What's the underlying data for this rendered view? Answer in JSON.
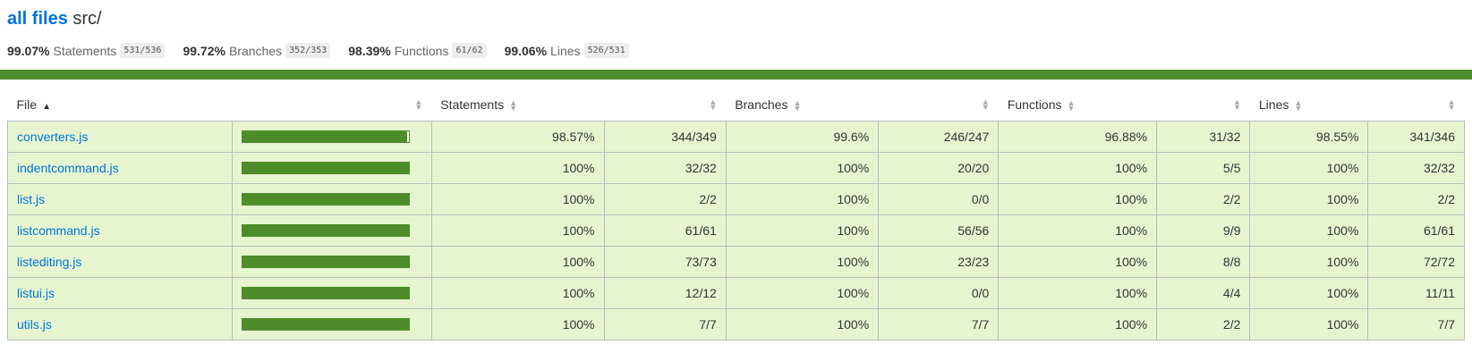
{
  "title": {
    "root_link": "all files",
    "path": "src/"
  },
  "summary": [
    {
      "pct": "99.07%",
      "label": "Statements",
      "frac": "531/536"
    },
    {
      "pct": "99.72%",
      "label": "Branches",
      "frac": "352/353"
    },
    {
      "pct": "98.39%",
      "label": "Functions",
      "frac": "61/62"
    },
    {
      "pct": "99.06%",
      "label": "Lines",
      "frac": "526/531"
    }
  ],
  "table": {
    "headers": {
      "file": "File",
      "statements": "Statements",
      "branches": "Branches",
      "functions": "Functions",
      "lines": "Lines"
    },
    "rows": [
      {
        "file": "converters.js",
        "coverage_fraction": 0.9857,
        "stmt_pct": "98.57%",
        "stmt_frac": "344/349",
        "br_pct": "99.6%",
        "br_frac": "246/247",
        "fn_pct": "96.88%",
        "fn_frac": "31/32",
        "ln_pct": "98.55%",
        "ln_frac": "341/346"
      },
      {
        "file": "indentcommand.js",
        "coverage_fraction": 1.0,
        "stmt_pct": "100%",
        "stmt_frac": "32/32",
        "br_pct": "100%",
        "br_frac": "20/20",
        "fn_pct": "100%",
        "fn_frac": "5/5",
        "ln_pct": "100%",
        "ln_frac": "32/32"
      },
      {
        "file": "list.js",
        "coverage_fraction": 1.0,
        "stmt_pct": "100%",
        "stmt_frac": "2/2",
        "br_pct": "100%",
        "br_frac": "0/0",
        "fn_pct": "100%",
        "fn_frac": "2/2",
        "ln_pct": "100%",
        "ln_frac": "2/2"
      },
      {
        "file": "listcommand.js",
        "coverage_fraction": 1.0,
        "stmt_pct": "100%",
        "stmt_frac": "61/61",
        "br_pct": "100%",
        "br_frac": "56/56",
        "fn_pct": "100%",
        "fn_frac": "9/9",
        "ln_pct": "100%",
        "ln_frac": "61/61"
      },
      {
        "file": "listediting.js",
        "coverage_fraction": 1.0,
        "stmt_pct": "100%",
        "stmt_frac": "73/73",
        "br_pct": "100%",
        "br_frac": "23/23",
        "fn_pct": "100%",
        "fn_frac": "8/8",
        "ln_pct": "100%",
        "ln_frac": "72/72"
      },
      {
        "file": "listui.js",
        "coverage_fraction": 1.0,
        "stmt_pct": "100%",
        "stmt_frac": "12/12",
        "br_pct": "100%",
        "br_frac": "0/0",
        "fn_pct": "100%",
        "fn_frac": "4/4",
        "ln_pct": "100%",
        "ln_frac": "11/11"
      },
      {
        "file": "utils.js",
        "coverage_fraction": 1.0,
        "stmt_pct": "100%",
        "stmt_frac": "7/7",
        "br_pct": "100%",
        "br_frac": "7/7",
        "fn_pct": "100%",
        "fn_frac": "2/2",
        "ln_pct": "100%",
        "ln_frac": "7/7"
      }
    ]
  },
  "colors": {
    "high_bg": "#e6f5d0",
    "bar_fill": "#4d8d2a",
    "link": "#0074d9",
    "status_bar": "#4d8d2a"
  }
}
